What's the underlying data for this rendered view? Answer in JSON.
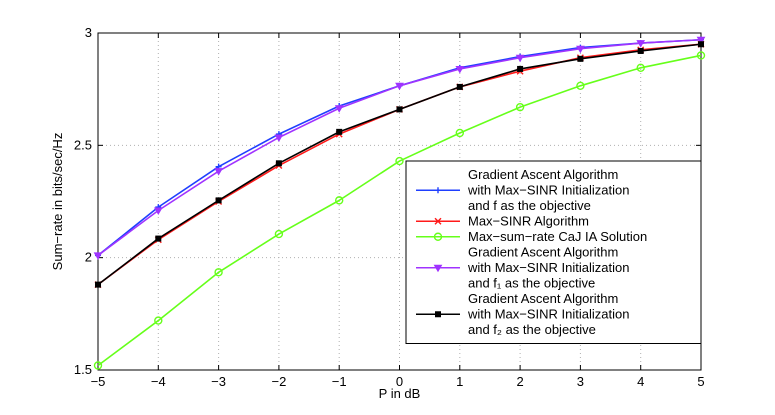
{
  "chart_data": {
    "type": "line",
    "xlabel": "P in dB",
    "ylabel": "Sum−rate in bits/sec/Hz",
    "xlim": [
      -5,
      5
    ],
    "ylim": [
      1.5,
      3
    ],
    "grid": true,
    "legend_position": "bottom-right",
    "x": [
      -5,
      -4,
      -3,
      -2,
      -1,
      0,
      1,
      2,
      3,
      4,
      5
    ],
    "x_tick_labels": [
      "−5",
      "−4",
      "−3",
      "−2",
      "−1",
      "0",
      "1",
      "2",
      "3",
      "4",
      "5"
    ],
    "y_ticks": [
      1.5,
      2,
      2.5,
      3
    ],
    "y_tick_labels": [
      "1.5",
      "2",
      "2.5",
      "3"
    ],
    "series": [
      {
        "legend_lines": [
          "Gradient Ascent Algorithm",
          " with Max−SINR Initialization",
          "and f as the objective"
        ],
        "color": "#1f3fff",
        "marker": "plus",
        "values": [
          2.01,
          2.225,
          2.405,
          2.55,
          2.675,
          2.765,
          2.845,
          2.895,
          2.935,
          2.955,
          2.97
        ]
      },
      {
        "legend_lines": [
          "Max−SINR Algorithm"
        ],
        "color": "#ff1a1a",
        "marker": "x",
        "values": [
          1.88,
          2.08,
          2.25,
          2.41,
          2.55,
          2.66,
          2.76,
          2.83,
          2.89,
          2.925,
          2.95
        ]
      },
      {
        "legend_lines": [
          "Max−sum−rate CaJ IA Solution"
        ],
        "color": "#66ff1a",
        "marker": "circle",
        "values": [
          1.52,
          1.72,
          1.935,
          2.105,
          2.255,
          2.43,
          2.555,
          2.67,
          2.765,
          2.845,
          2.9
        ]
      },
      {
        "legend_lines": [
          "Gradient Ascent Algorithm",
          " with Max−SINR Initialization",
          "and f₁ as the objective"
        ],
        "color": "#a033ff",
        "marker": "triangle-down",
        "values": [
          2.01,
          2.21,
          2.385,
          2.535,
          2.665,
          2.765,
          2.84,
          2.89,
          2.93,
          2.955,
          2.97
        ]
      },
      {
        "legend_lines": [
          "Gradient Ascent Algorithm",
          " with Max−SINR Initialization",
          "and f₂ as the objective"
        ],
        "color": "#000000",
        "marker": "square",
        "values": [
          1.88,
          2.085,
          2.255,
          2.42,
          2.56,
          2.66,
          2.76,
          2.84,
          2.885,
          2.92,
          2.95
        ]
      }
    ]
  }
}
